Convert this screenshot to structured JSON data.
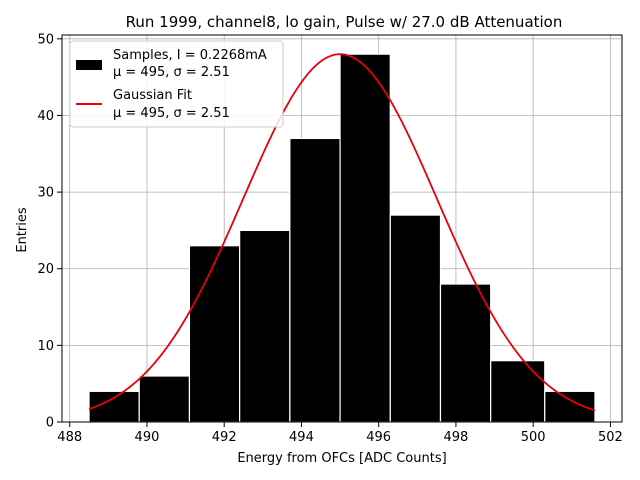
{
  "chart_data": {
    "type": "bar",
    "title": "Run 1999, channel8, lo gain, Pulse w/ 27.0 dB Attenuation",
    "xlabel": "Energy from OFCs [ADC Counts]",
    "ylabel": "Entries",
    "xlim": [
      487.8,
      502.3
    ],
    "ylim": [
      0,
      50.5
    ],
    "xticks": [
      488,
      490,
      492,
      494,
      496,
      498,
      500,
      502
    ],
    "yticks": [
      0,
      10,
      20,
      30,
      40,
      50
    ],
    "grid": true,
    "legend_position": "top-left",
    "bins": [
      {
        "x0": 488.5,
        "x1": 489.8,
        "count": 4
      },
      {
        "x0": 489.8,
        "x1": 491.1,
        "count": 6
      },
      {
        "x0": 491.1,
        "x1": 492.4,
        "count": 23
      },
      {
        "x0": 492.4,
        "x1": 493.7,
        "count": 25
      },
      {
        "x0": 493.7,
        "x1": 495.0,
        "count": 37
      },
      {
        "x0": 495.0,
        "x1": 496.3,
        "count": 48
      },
      {
        "x0": 496.3,
        "x1": 497.6,
        "count": 27
      },
      {
        "x0": 497.6,
        "x1": 498.9,
        "count": 18
      },
      {
        "x0": 498.9,
        "x1": 500.3,
        "count": 8
      },
      {
        "x0": 500.3,
        "x1": 501.6,
        "count": 4
      }
    ],
    "series": [
      {
        "name": "Samples, I = 0.2268mA",
        "stats": "μ = 495, σ = 2.51",
        "kind": "histogram",
        "color": "#000000"
      },
      {
        "name": "Gaussian Fit",
        "stats": "μ = 495, σ = 2.51",
        "kind": "line",
        "color": "#e8000b",
        "fit": {
          "mu": 495.0,
          "sigma": 2.51,
          "amplitude": 48.0,
          "x_range": [
            488.5,
            501.6
          ]
        }
      }
    ]
  }
}
